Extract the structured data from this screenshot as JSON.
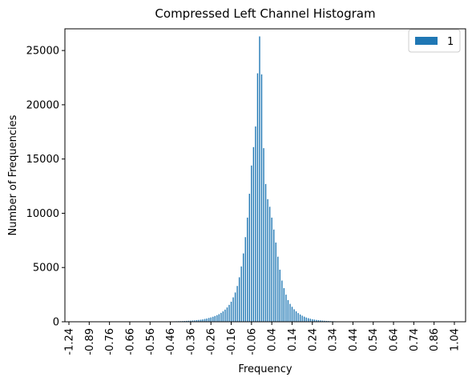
{
  "chart_data": {
    "type": "bar",
    "title": "Compressed Left Channel Histogram",
    "xlabel": "Frequency",
    "ylabel": "Number of Frequencies",
    "ylim": [
      0,
      27000
    ],
    "yticks": [
      "0",
      "5000",
      "10000",
      "15000",
      "20000",
      "25000"
    ],
    "xtick_labels": [
      "-1.24",
      "-0.89",
      "-0.76",
      "-0.66",
      "-0.56",
      "-0.46",
      "-0.36",
      "-0.26",
      "-0.16",
      "-0.06",
      "0.04",
      "0.14",
      "0.24",
      "0.34",
      "0.44",
      "0.54",
      "0.64",
      "0.74",
      "0.86",
      "1.04"
    ],
    "legend": {
      "position": "top-right",
      "entries": [
        "1"
      ]
    },
    "grid": false,
    "bar_color": "#1f77b4",
    "series": [
      {
        "name": "1",
        "x": [
          -0.48,
          -0.47,
          -0.46,
          -0.45,
          -0.44,
          -0.43,
          -0.42,
          -0.41,
          -0.4,
          -0.39,
          -0.38,
          -0.37,
          -0.36,
          -0.35,
          -0.34,
          -0.33,
          -0.32,
          -0.31,
          -0.3,
          -0.29,
          -0.28,
          -0.27,
          -0.26,
          -0.25,
          -0.24,
          -0.23,
          -0.22,
          -0.21,
          -0.2,
          -0.19,
          -0.18,
          -0.17,
          -0.16,
          -0.15,
          -0.14,
          -0.13,
          -0.12,
          -0.11,
          -0.1,
          -0.09,
          -0.08,
          -0.07,
          -0.06,
          -0.05,
          -0.04,
          -0.03,
          -0.02,
          -0.01,
          0.0,
          0.01,
          0.02,
          0.03,
          0.04,
          0.05,
          0.06,
          0.07,
          0.08,
          0.09,
          0.1,
          0.11,
          0.12,
          0.13,
          0.14,
          0.15,
          0.16,
          0.17,
          0.18,
          0.19,
          0.2,
          0.21,
          0.22,
          0.23,
          0.24,
          0.25,
          0.26,
          0.27,
          0.28,
          0.29,
          0.3,
          0.31,
          0.32,
          0.33,
          0.34,
          0.35,
          0.36,
          0.37,
          0.38,
          0.39,
          0.4,
          0.41,
          0.42,
          0.43,
          0.44,
          0.45
        ],
        "values": [
          20,
          25,
          30,
          35,
          40,
          45,
          50,
          55,
          60,
          70,
          80,
          90,
          100,
          115,
          130,
          150,
          170,
          190,
          220,
          260,
          300,
          350,
          400,
          460,
          530,
          610,
          700,
          820,
          960,
          1120,
          1320,
          1560,
          1850,
          2250,
          2700,
          3300,
          4100,
          5100,
          6300,
          7800,
          9600,
          11800,
          14400,
          16100,
          18000,
          22900,
          26300,
          22800,
          16000,
          12700,
          11300,
          10600,
          9600,
          8500,
          7300,
          6000,
          4800,
          3800,
          3100,
          2500,
          2000,
          1650,
          1380,
          1150,
          960,
          800,
          670,
          560,
          470,
          390,
          330,
          280,
          235,
          200,
          170,
          145,
          125,
          105,
          90,
          78,
          67,
          58,
          50,
          43,
          37,
          32,
          28,
          24,
          21,
          18,
          15,
          13,
          11,
          9
        ]
      }
    ]
  }
}
